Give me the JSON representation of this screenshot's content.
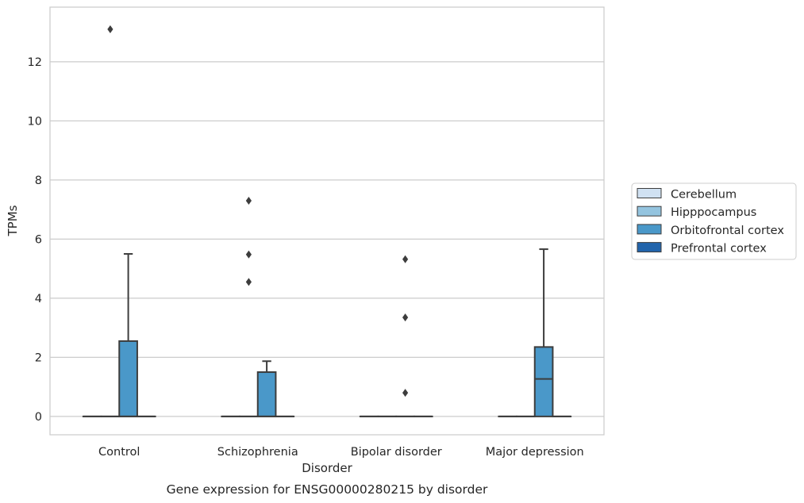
{
  "chart_data": {
    "type": "box",
    "title": "Gene expression for ENSG00000280215 by disorder",
    "xlabel": "Disorder",
    "ylabel": "TPMs",
    "categories": [
      "Control",
      "Schizophrenia",
      "Bipolar disorder",
      "Major depression"
    ],
    "ylim": [
      -0.62,
      13.85
    ],
    "yticks": [
      0,
      2,
      4,
      6,
      8,
      10,
      12
    ],
    "grid": true,
    "legend_position": "right",
    "series": [
      {
        "name": "Cerebellum",
        "color": "#d0e1f2",
        "boxes": [
          {
            "category": "Control",
            "whislo": 0,
            "q1": 0,
            "med": 0,
            "q3": 0,
            "whishi": 0,
            "fliers": []
          },
          {
            "category": "Schizophrenia",
            "whislo": 0,
            "q1": 0,
            "med": 0,
            "q3": 0,
            "whishi": 0,
            "fliers": []
          },
          {
            "category": "Bipolar disorder",
            "whislo": 0,
            "q1": 0,
            "med": 0,
            "q3": 0,
            "whishi": 0,
            "fliers": []
          },
          {
            "category": "Major depression",
            "whislo": 0,
            "q1": 0,
            "med": 0,
            "q3": 0,
            "whishi": 0,
            "fliers": []
          }
        ]
      },
      {
        "name": "Hipppocampus",
        "color": "#94c4df",
        "boxes": [
          {
            "category": "Control",
            "whislo": 0,
            "q1": 0,
            "med": 0,
            "q3": 0,
            "whishi": 0,
            "fliers": [
              13.1
            ]
          },
          {
            "category": "Schizophrenia",
            "whislo": 0,
            "q1": 0,
            "med": 0,
            "q3": 0,
            "whishi": 0,
            "fliers": [
              7.3,
              5.48,
              4.55
            ]
          },
          {
            "category": "Bipolar disorder",
            "whislo": 0,
            "q1": 0,
            "med": 0,
            "q3": 0,
            "whishi": 0,
            "fliers": []
          },
          {
            "category": "Major depression",
            "whislo": 0,
            "q1": 0,
            "med": 0,
            "q3": 0,
            "whishi": 0,
            "fliers": []
          }
        ]
      },
      {
        "name": "Orbitofrontal cortex",
        "color": "#4a98c9",
        "boxes": [
          {
            "category": "Control",
            "whislo": 0,
            "q1": 0,
            "med": 0,
            "q3": 2.55,
            "whishi": 5.5,
            "fliers": []
          },
          {
            "category": "Schizophrenia",
            "whislo": 0,
            "q1": 0,
            "med": 0,
            "q3": 1.5,
            "whishi": 1.87,
            "fliers": []
          },
          {
            "category": "Bipolar disorder",
            "whislo": 0,
            "q1": 0,
            "med": 0,
            "q3": 0,
            "whishi": 0,
            "fliers": [
              5.32,
              3.35,
              0.8
            ]
          },
          {
            "category": "Major depression",
            "whislo": 0,
            "q1": 0,
            "med": 1.27,
            "q3": 2.35,
            "whishi": 5.66,
            "fliers": []
          }
        ]
      },
      {
        "name": "Prefrontal cortex",
        "color": "#2164ab",
        "boxes": [
          {
            "category": "Control",
            "whislo": 0,
            "q1": 0,
            "med": 0,
            "q3": 0,
            "whishi": 0,
            "fliers": []
          },
          {
            "category": "Schizophrenia",
            "whislo": 0,
            "q1": 0,
            "med": 0,
            "q3": 0,
            "whishi": 0,
            "fliers": []
          },
          {
            "category": "Bipolar disorder",
            "whislo": 0,
            "q1": 0,
            "med": 0,
            "q3": 0,
            "whishi": 0,
            "fliers": []
          },
          {
            "category": "Major depression",
            "whislo": 0,
            "q1": 0,
            "med": 0,
            "q3": 0,
            "whishi": 0,
            "fliers": []
          }
        ]
      }
    ]
  }
}
